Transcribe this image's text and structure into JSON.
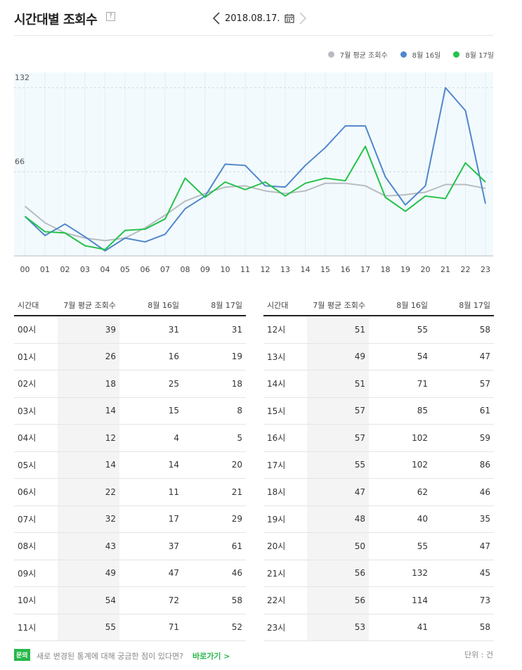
{
  "header": {
    "title": "시간대별 조회수",
    "help": "?",
    "date": "2018.08.17."
  },
  "icons": {
    "prev": "chevron-left-icon",
    "next": "chevron-right-icon",
    "calendar": "calendar-icon"
  },
  "colors": {
    "july": "#b8bcc2",
    "aug16": "#4f87cc",
    "aug17": "#23c24a"
  },
  "legend": [
    "7월 평균 조회수",
    "8월 16일",
    "8월 17일"
  ],
  "chart_data": {
    "type": "line",
    "categories": [
      "00",
      "01",
      "02",
      "03",
      "04",
      "05",
      "06",
      "07",
      "08",
      "09",
      "10",
      "11",
      "12",
      "13",
      "14",
      "15",
      "16",
      "17",
      "18",
      "19",
      "20",
      "21",
      "22",
      "23"
    ],
    "y_ticks": [
      66,
      132
    ],
    "series": [
      {
        "name": "7월 평균 조회수",
        "values": [
          39,
          26,
          18,
          14,
          12,
          14,
          22,
          32,
          43,
          49,
          54,
          55,
          51,
          49,
          51,
          57,
          57,
          55,
          47,
          48,
          50,
          56,
          56,
          53
        ]
      },
      {
        "name": "8월 16일",
        "values": [
          31,
          16,
          25,
          15,
          4,
          14,
          11,
          17,
          37,
          47,
          72,
          71,
          55,
          54,
          71,
          85,
          102,
          102,
          62,
          40,
          55,
          132,
          114,
          41
        ]
      },
      {
        "name": "8월 17일",
        "values": [
          31,
          19,
          18,
          8,
          5,
          20,
          21,
          29,
          61,
          46,
          58,
          52,
          58,
          47,
          57,
          61,
          59,
          86,
          46,
          35,
          47,
          45,
          73,
          58
        ]
      }
    ]
  },
  "table": {
    "headers": [
      "시간대",
      "7월 평균 조회수",
      "8월 16일",
      "8월 17일"
    ],
    "left": [
      [
        "00시",
        "39",
        "31",
        "31"
      ],
      [
        "01시",
        "26",
        "16",
        "19"
      ],
      [
        "02시",
        "18",
        "25",
        "18"
      ],
      [
        "03시",
        "14",
        "15",
        "8"
      ],
      [
        "04시",
        "12",
        "4",
        "5"
      ],
      [
        "05시",
        "14",
        "14",
        "20"
      ],
      [
        "06시",
        "22",
        "11",
        "21"
      ],
      [
        "07시",
        "32",
        "17",
        "29"
      ],
      [
        "08시",
        "43",
        "37",
        "61"
      ],
      [
        "09시",
        "49",
        "47",
        "46"
      ],
      [
        "10시",
        "54",
        "72",
        "58"
      ],
      [
        "11시",
        "55",
        "71",
        "52"
      ]
    ],
    "right": [
      [
        "12시",
        "51",
        "55",
        "58"
      ],
      [
        "13시",
        "49",
        "54",
        "47"
      ],
      [
        "14시",
        "51",
        "71",
        "57"
      ],
      [
        "15시",
        "57",
        "85",
        "61"
      ],
      [
        "16시",
        "57",
        "102",
        "59"
      ],
      [
        "17시",
        "55",
        "102",
        "86"
      ],
      [
        "18시",
        "47",
        "62",
        "46"
      ],
      [
        "19시",
        "48",
        "40",
        "35"
      ],
      [
        "20시",
        "50",
        "55",
        "47"
      ],
      [
        "21시",
        "56",
        "132",
        "45"
      ],
      [
        "22시",
        "56",
        "114",
        "73"
      ],
      [
        "23시",
        "53",
        "41",
        "58"
      ]
    ]
  },
  "footer": {
    "badge": "문의",
    "text": "새로 변경된 통계에 대해 궁금한 점이 있다면?",
    "link": "바로가기 >",
    "unit": "단위 : 건"
  }
}
